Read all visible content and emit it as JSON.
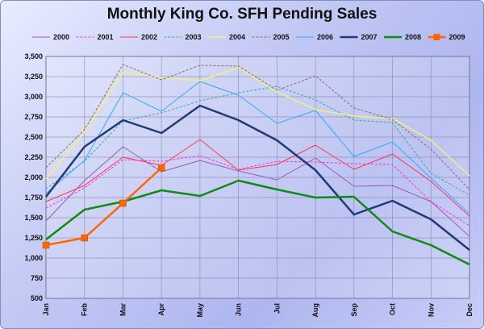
{
  "chart_data": {
    "type": "line",
    "title": "Monthly King Co. SFH Pending Sales",
    "xlabel": "",
    "ylabel": "",
    "categories": [
      "Jan",
      "Feb",
      "Mar",
      "Apr",
      "May",
      "Jun",
      "Jul",
      "Aug",
      "Sep",
      "Oct",
      "Nov",
      "Dec"
    ],
    "ylim": [
      500,
      3500
    ],
    "yticks": [
      "500",
      "750",
      "1,000",
      "1,250",
      "1,500",
      "1,750",
      "2,000",
      "2,250",
      "2,500",
      "2,750",
      "3,000",
      "3,250",
      "3,500"
    ],
    "grid": true,
    "legend": "top",
    "series": [
      {
        "name": "2000",
        "color": "#9b59b6",
        "style": "solid",
        "width": 1,
        "values": [
          1460,
          1960,
          2380,
          2070,
          2210,
          2080,
          1970,
          2240,
          1890,
          1900,
          1700,
          1270
        ]
      },
      {
        "name": "2001",
        "color": "#ff33cc",
        "style": "dashed",
        "width": 1,
        "values": [
          1620,
          1870,
          2220,
          2200,
          2270,
          2100,
          2200,
          2190,
          2170,
          2160,
          1700,
          1400
        ]
      },
      {
        "name": "2002",
        "color": "#ff3355",
        "style": "solid",
        "width": 1,
        "values": [
          1700,
          1900,
          2250,
          2150,
          2470,
          2090,
          2160,
          2400,
          2100,
          2290,
          1950,
          1520
        ]
      },
      {
        "name": "2003",
        "color": "#33aaaa",
        "style": "dashed",
        "width": 1,
        "values": [
          1860,
          2200,
          2700,
          2800,
          2950,
          3050,
          3130,
          2960,
          2710,
          2680,
          2050,
          1780
        ]
      },
      {
        "name": "2004",
        "color": "#f2f27a",
        "style": "solid",
        "width": 1.5,
        "values": [
          1980,
          2560,
          3300,
          3240,
          3200,
          3360,
          3060,
          2840,
          2760,
          2730,
          2460,
          2020
        ]
      },
      {
        "name": "2005",
        "color": "#8a6a6a",
        "style": "dashed",
        "width": 1,
        "values": [
          2120,
          2590,
          3400,
          3210,
          3390,
          3380,
          3080,
          3260,
          2860,
          2720,
          2350,
          1850
        ]
      },
      {
        "name": "2006",
        "color": "#33aaff",
        "style": "solid",
        "width": 1,
        "values": [
          1800,
          2210,
          3050,
          2820,
          3190,
          3020,
          2670,
          2830,
          2260,
          2440,
          1990,
          1550
        ]
      },
      {
        "name": "2007",
        "color": "#1f3a78",
        "style": "solid",
        "width": 2.5,
        "values": [
          1760,
          2380,
          2710,
          2550,
          2890,
          2710,
          2460,
          2090,
          1540,
          1710,
          1480,
          1100
        ]
      },
      {
        "name": "2008",
        "color": "#118a11",
        "style": "solid",
        "width": 2.5,
        "values": [
          1230,
          1600,
          1700,
          1840,
          1770,
          1960,
          1850,
          1750,
          1760,
          1330,
          1160,
          920
        ]
      },
      {
        "name": "2009",
        "color": "#ff6600",
        "style": "marker",
        "width": 2.5,
        "values": [
          1160,
          1250,
          1680,
          2120,
          null,
          null,
          null,
          null,
          null,
          null,
          null,
          null
        ]
      }
    ]
  }
}
